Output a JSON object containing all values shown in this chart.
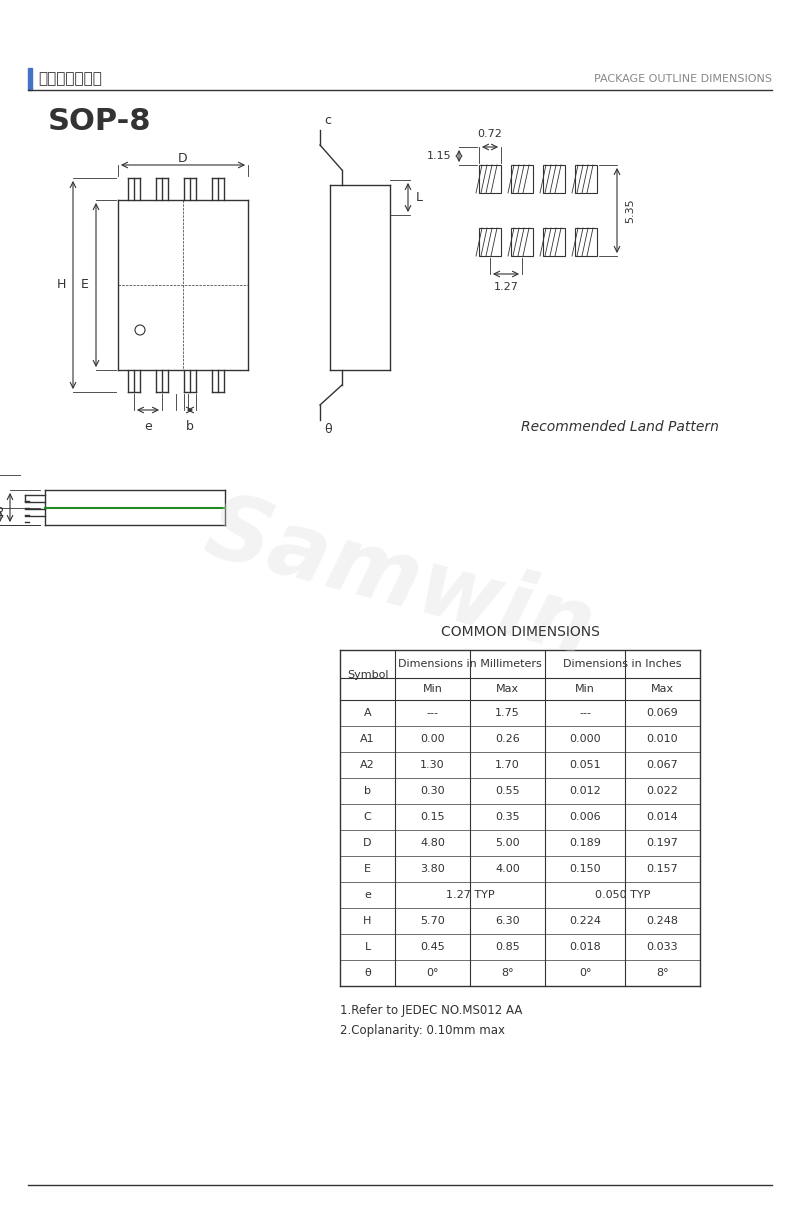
{
  "title_chinese": "产品封装尺寸图",
  "title_english": "PACKAGE OUTLINE DIMENSIONS",
  "package_name": "SOP-8",
  "bg_color": "#ffffff",
  "line_color": "#333333",
  "text_color": "#333333",
  "watermark_color": "#cccccc",
  "table_title": "COMMON DIMENSIONS",
  "table_headers": [
    "Symbol",
    "Dimensions in Millimeters",
    "",
    "Dimensions in Inches",
    ""
  ],
  "table_subheaders": [
    "",
    "Min",
    "Max",
    "Min",
    "Max"
  ],
  "table_data": [
    [
      "A",
      "---",
      "1.75",
      "---",
      "0.069"
    ],
    [
      "A1",
      "0.00",
      "0.26",
      "0.000",
      "0.010"
    ],
    [
      "A2",
      "1.30",
      "1.70",
      "0.051",
      "0.067"
    ],
    [
      "b",
      "0.30",
      "0.55",
      "0.012",
      "0.022"
    ],
    [
      "C",
      "0.15",
      "0.35",
      "0.006",
      "0.014"
    ],
    [
      "D",
      "4.80",
      "5.00",
      "0.189",
      "0.197"
    ],
    [
      "E",
      "3.80",
      "4.00",
      "0.150",
      "0.157"
    ],
    [
      "e",
      "1.27 TYP",
      "",
      "0.050 TYP",
      ""
    ],
    [
      "H",
      "5.70",
      "6.30",
      "0.224",
      "0.248"
    ],
    [
      "L",
      "0.45",
      "0.85",
      "0.018",
      "0.033"
    ],
    [
      "θ",
      "0°",
      "8°",
      "0°",
      "8°"
    ]
  ],
  "notes": [
    "1.Refer to JEDEC NO.MS012 AA",
    "2.Coplanarity: 0.10mm max"
  ],
  "land_pattern_title": "Recommended Land Pattern",
  "land_dims": {
    "top_width": "0.72",
    "top_height": "1.15",
    "bottom_spacing": "1.27",
    "right_height": "5.35"
  }
}
